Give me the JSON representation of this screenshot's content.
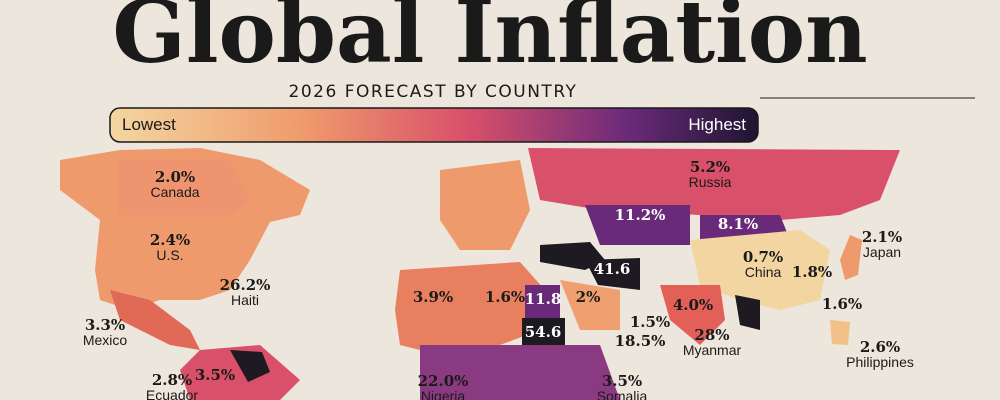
{
  "header": {
    "title": "Global Inflation",
    "subtitle": "2026 FORECAST BY COUNTRY"
  },
  "legend": {
    "low": "Lowest",
    "high": "Highest"
  },
  "labels": [
    {
      "value": "2.0%",
      "name": "Canada"
    },
    {
      "value": "2.4%",
      "name": "U.S."
    },
    {
      "value": "26.2%",
      "name": "Haiti"
    },
    {
      "value": "3.3%",
      "name": "Mexico"
    },
    {
      "value": "2.8%",
      "name": "Ecuador"
    },
    {
      "value": "3.5%"
    },
    {
      "value": "22.0%",
      "name": "Nigeria"
    },
    {
      "value": "3.5%",
      "name": "Somalia"
    },
    {
      "value": "3.9%"
    },
    {
      "value": "1.6%"
    },
    {
      "value": "11.8"
    },
    {
      "value": "54.6"
    },
    {
      "value": "2%"
    },
    {
      "value": "41.6"
    },
    {
      "value": "1.5%"
    },
    {
      "value": "18.5%"
    },
    {
      "value": "4.0%"
    },
    {
      "value": "28%",
      "name": "Myanmar"
    },
    {
      "value": "11.2%"
    },
    {
      "value": "8.1%"
    },
    {
      "value": "5.2%",
      "name": "Russia"
    },
    {
      "value": "0.7%",
      "name": "China"
    },
    {
      "value": "1.8%"
    },
    {
      "value": "2.1%",
      "name": "Japan"
    },
    {
      "value": "1.6%"
    },
    {
      "value": "2.6%",
      "name": "Philippines"
    }
  ]
}
